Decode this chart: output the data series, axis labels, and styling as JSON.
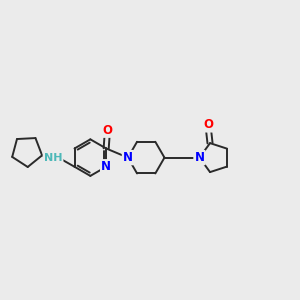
{
  "background_color": "#ebebeb",
  "bond_color": "#2a2a2a",
  "nitrogen_color": "#0000ff",
  "oxygen_color": "#ff0000",
  "nh_color": "#4db8b8",
  "bond_width": 1.4,
  "fig_width": 3.0,
  "fig_height": 3.0,
  "xlim": [
    -2.8,
    8.8
  ],
  "ylim": [
    -2.2,
    2.8
  ]
}
